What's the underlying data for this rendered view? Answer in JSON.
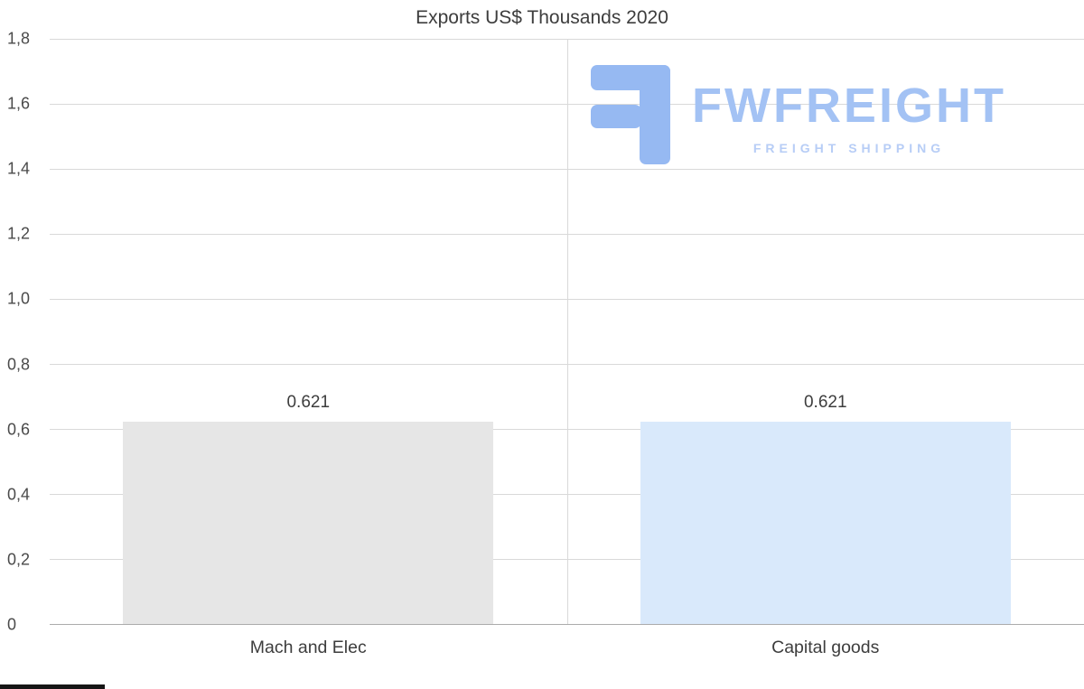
{
  "logo": {
    "name": "FWFREIGHT",
    "tagline": "FREIGHT SHIPPING",
    "icon_color": "#96b9f2",
    "name_color": "#a3c2f4",
    "tagline_color": "#b7cdf6"
  },
  "chart_data": {
    "type": "bar",
    "title": "Exports US$ Thousands 2020",
    "categories": [
      "Mach and Elec",
      "Capital goods"
    ],
    "values": [
      0.621,
      0.621
    ],
    "value_labels": [
      "0.621",
      "0.621"
    ],
    "bar_colors": [
      "#e6e6e6",
      "#d9e9fb"
    ],
    "xlabel": "",
    "ylabel": "",
    "ylim": [
      0,
      1.8
    ],
    "yticks": [
      "1,8",
      "1,6",
      "1,4",
      "1,2",
      "1,0",
      "0,8",
      "0,6",
      "0,4",
      "0,2",
      "0"
    ],
    "ytick_values": [
      1.8,
      1.6,
      1.4,
      1.2,
      1.0,
      0.8,
      0.6,
      0.4,
      0.2,
      0
    ],
    "grid": "horizontal gridlines plus one vertical center divider",
    "legend": "none"
  }
}
